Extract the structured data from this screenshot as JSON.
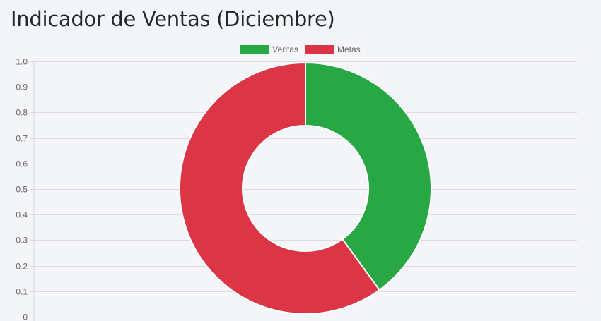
{
  "page": {
    "title": "Indicador de Ventas (Diciembre)"
  },
  "chart_data": {
    "type": "doughnut",
    "categories": [
      "Ventas",
      "Metas"
    ],
    "values": [
      40,
      60
    ],
    "colors": [
      "#28a745",
      "#dc3545"
    ],
    "legend": [
      "Ventas",
      "Metas"
    ],
    "legend_position": "top",
    "yaxis": {
      "ylim": [
        0,
        1
      ],
      "ticks": [
        "0",
        "0.1",
        "0.2",
        "0.3",
        "0.4",
        "0.5",
        "0.6",
        "0.7",
        "0.8",
        "0.9",
        "1.0"
      ]
    },
    "grid": true
  }
}
